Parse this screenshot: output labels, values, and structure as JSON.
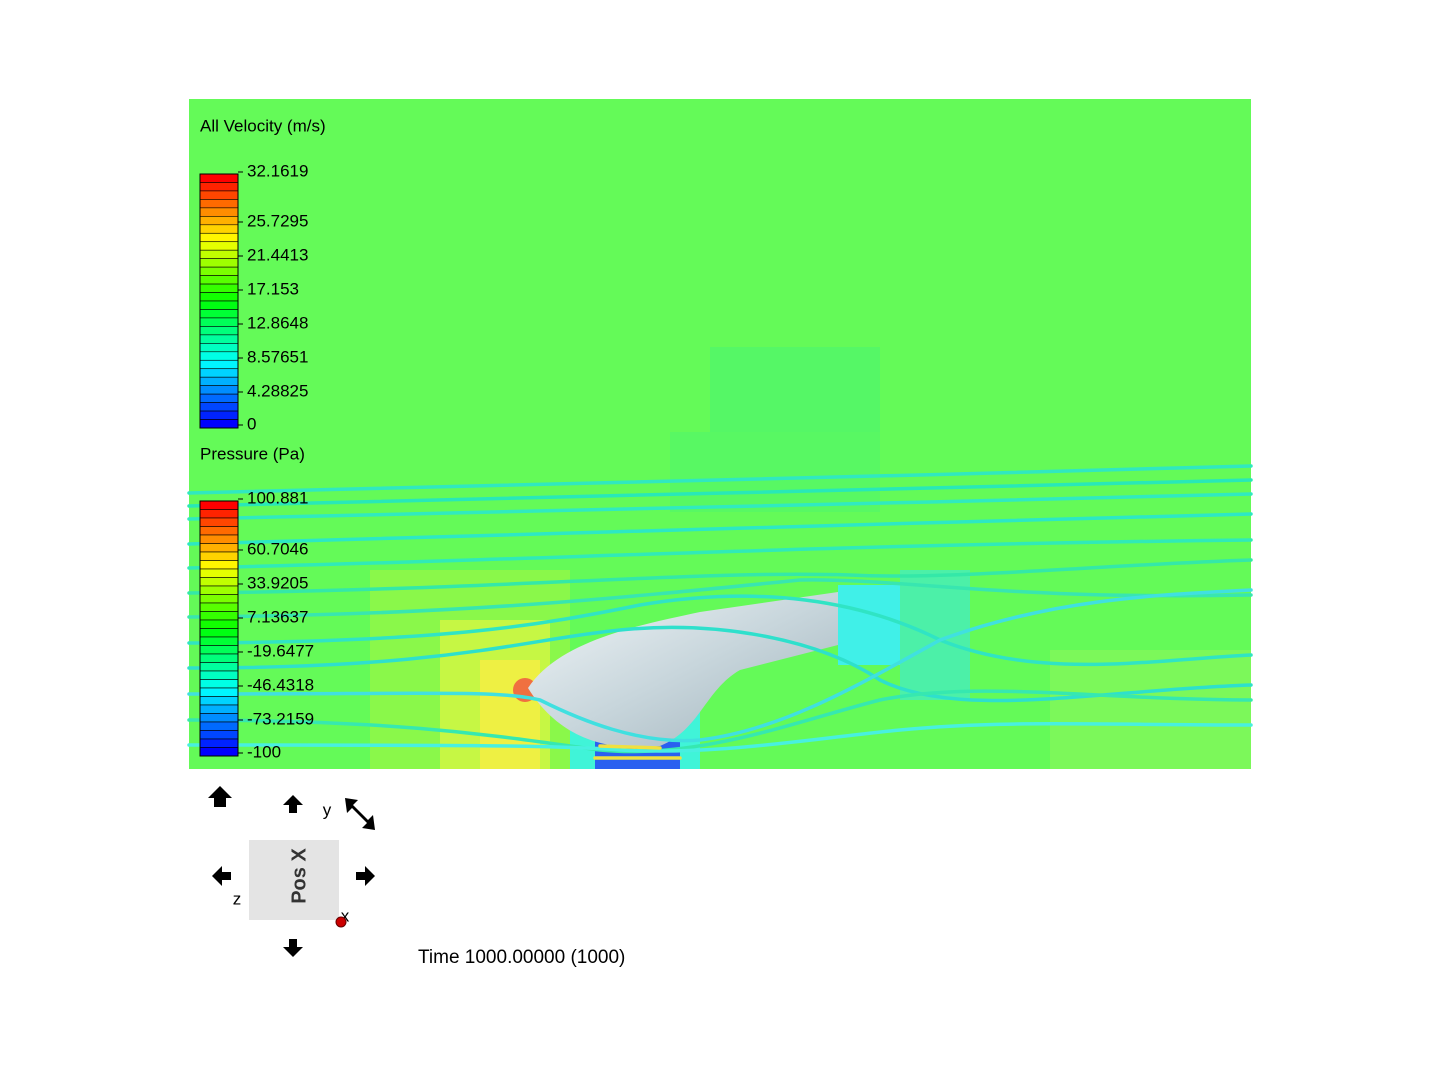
{
  "velocity_legend": {
    "title": "All Velocity (m/s)",
    "labels": [
      "32.1619",
      "25.7295",
      "21.4413",
      "17.153",
      "12.8648",
      "8.57651",
      "4.28825",
      "0"
    ]
  },
  "pressure_legend": {
    "title": "Pressure (Pa)",
    "labels": [
      "100.881",
      "60.7046",
      "33.9205",
      "7.13637",
      "-19.6477",
      "-46.4318",
      "-73.2159",
      "-100"
    ]
  },
  "view_cube": {
    "face": "Pos X",
    "axis_y": "y",
    "axis_z": "z",
    "axis_x": "x"
  },
  "time_label": "Time 1000.00000 (1000)"
}
